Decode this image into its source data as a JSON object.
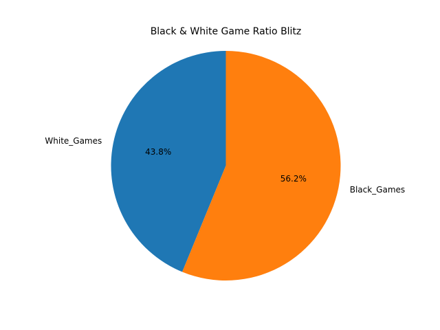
{
  "chart_data": {
    "type": "pie",
    "title": "Black & White Game Ratio Blitz",
    "slices": [
      {
        "label": "White_Games",
        "value": 43.8,
        "pct_label": "43.8%",
        "color": "#1f77b4"
      },
      {
        "label": "Black_Games",
        "value": 56.2,
        "pct_label": "56.2%",
        "color": "#ff7f0e"
      }
    ],
    "start_angle_deg": 90,
    "direction": "counterclockwise",
    "legend": false
  }
}
